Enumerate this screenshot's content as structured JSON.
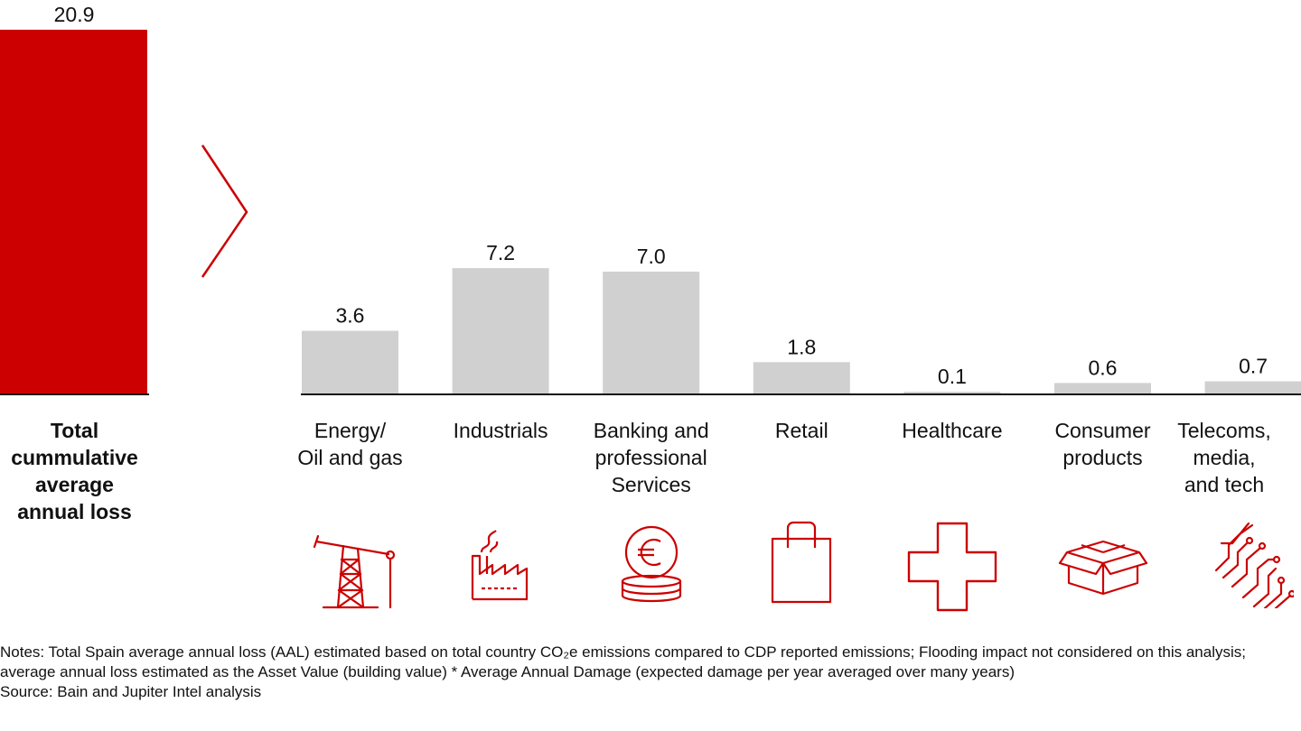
{
  "chart_data": {
    "type": "bar",
    "total": {
      "label": "Total\ncummulative\naverage\nannual loss",
      "value": 20.9,
      "value_label": "20.9",
      "color": "#cc0000"
    },
    "categories": [
      "Energy/\nOil and gas",
      "Industrials",
      "Banking and\nprofessional\nServices",
      "Retail",
      "Healthcare",
      "Consumer\nproducts",
      "Telecoms,\nmedia,\nand tech"
    ],
    "values": [
      3.6,
      7.2,
      7.0,
      1.8,
      0.1,
      0.6,
      0.7
    ],
    "value_labels": [
      "3.6",
      "7.2",
      "7.0",
      "1.8",
      "0.1",
      "0.6",
      "0.7"
    ],
    "bar_color": "#d0d0d0",
    "icons": [
      "oil-pumpjack-icon",
      "factory-icon",
      "euro-coins-icon",
      "shopping-bag-icon",
      "medical-cross-icon",
      "open-box-icon",
      "circuit-icon"
    ],
    "icon_color": "#cc0000",
    "ylim": [
      0,
      21
    ],
    "grid": false
  },
  "notes": {
    "notes_text": "Notes: Total Spain average annual loss (AAL) estimated based on total country CO₂e emissions compared to CDP reported emissions; Flooding impact not considered on this analysis; average annual loss estimated as the Asset Value (building value) * Average Annual Damage (expected damage per year averaged over many years)",
    "source_text": "Source: Bain and Jupiter Intel analysis"
  }
}
